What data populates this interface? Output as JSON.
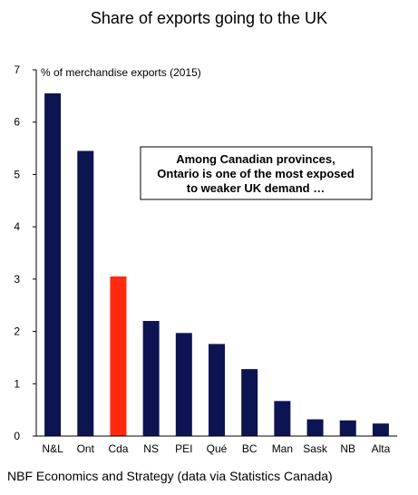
{
  "chart_data": {
    "type": "bar",
    "title": "Share of exports going to the UK",
    "ylabel": "% of merchandise exports (2015)",
    "xlabel": "",
    "categories": [
      "N&L",
      "Ont",
      "Cda",
      "NS",
      "PEI",
      "Qué",
      "BC",
      "Man",
      "Sask",
      "NB",
      "Alta"
    ],
    "values": [
      6.55,
      5.45,
      3.05,
      2.2,
      1.97,
      1.76,
      1.28,
      0.67,
      0.32,
      0.3,
      0.24
    ],
    "ylim": [
      0,
      7
    ],
    "yticks": [
      0,
      1,
      2,
      3,
      4,
      5,
      6,
      7
    ],
    "grid": false,
    "colors": {
      "default": "#0d1452",
      "highlight": "#ff2a0e",
      "highlight_category": "Cda"
    },
    "annotation": {
      "lines": [
        "Among Canadian provinces,",
        "Ontario is one of the most exposed",
        "to weaker UK demand …"
      ]
    }
  },
  "source": "NBF Economics and Strategy (data via Statistics Canada)"
}
